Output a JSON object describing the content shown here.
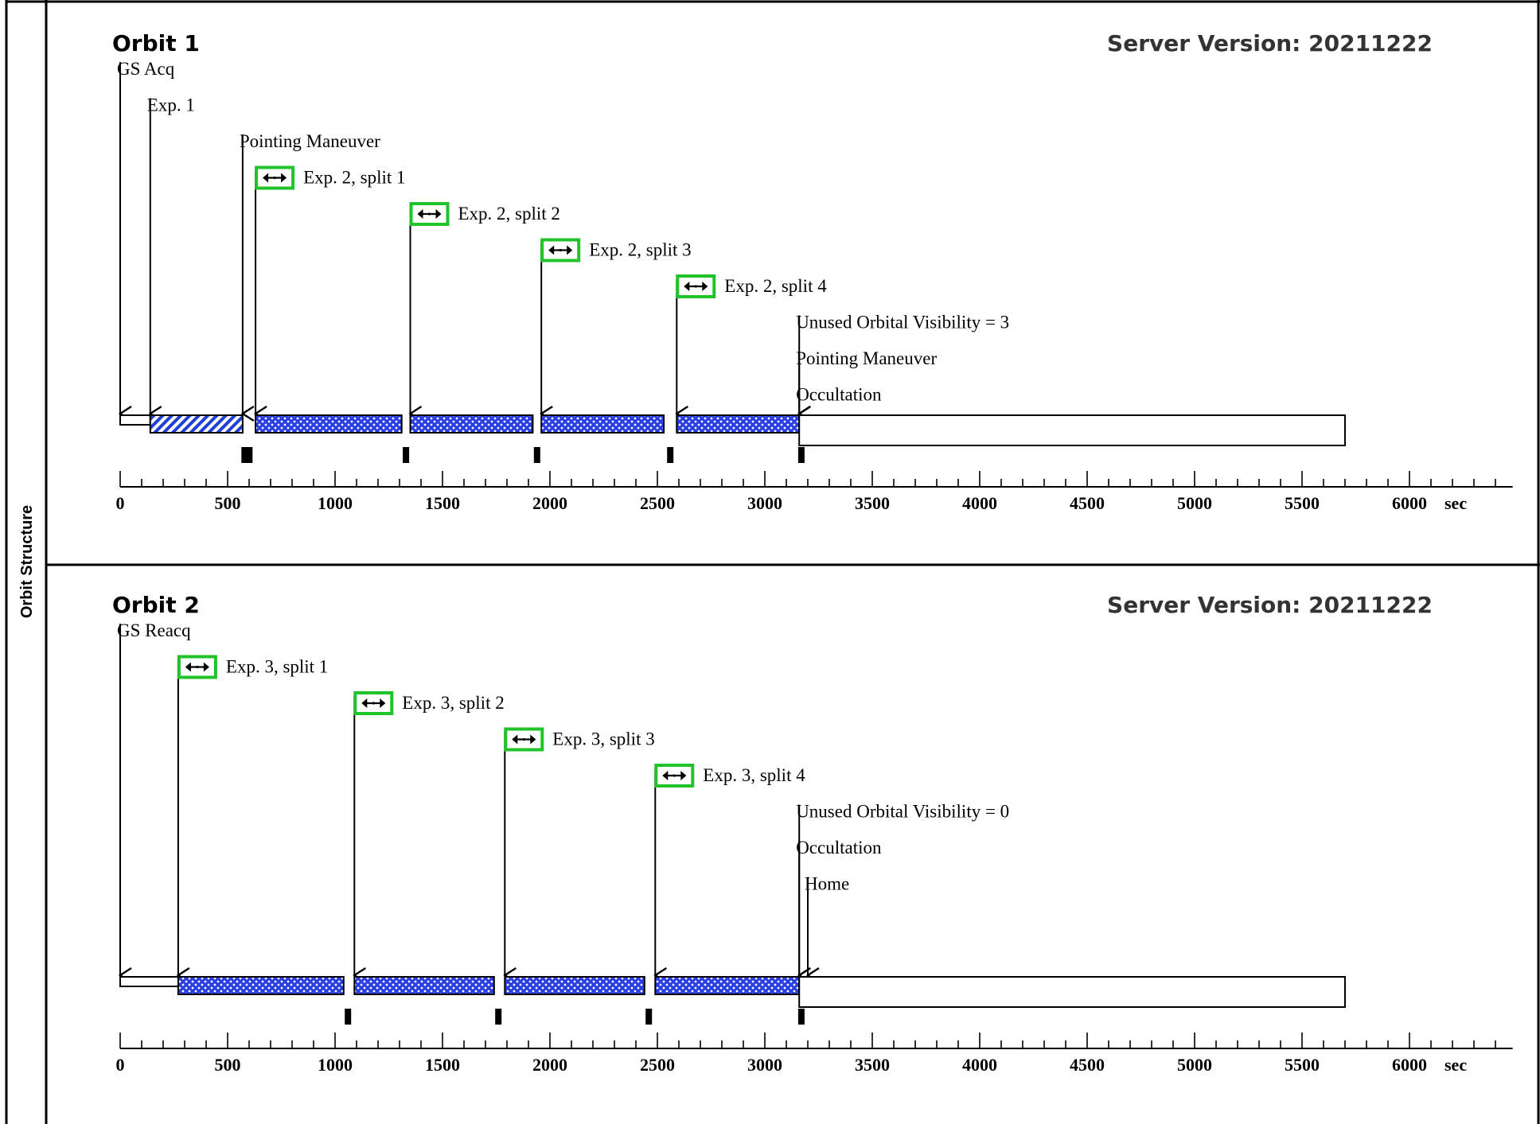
{
  "side_label": "Orbit Structure",
  "orbits": [
    {
      "title": "Orbit 1",
      "server_version": "Server Version: 20211222",
      "axis_unit": "sec",
      "axis_ticks": [
        "0",
        "500",
        "1000",
        "1500",
        "2000",
        "2500",
        "3000",
        "3500",
        "4000",
        "4500",
        "5000",
        "5500",
        "6000"
      ],
      "events": [
        {
          "label": "GS Acq",
          "time": 0,
          "icon": false
        },
        {
          "label": "Exp. 1",
          "time": 140,
          "icon": false
        },
        {
          "label": "Pointing Maneuver",
          "time": 570,
          "icon": false
        },
        {
          "label": "Exp. 2, split 1",
          "time": 630,
          "icon": "double-arrow-icon"
        },
        {
          "label": "Exp. 2, split 2",
          "time": 1350,
          "icon": "double-arrow-icon"
        },
        {
          "label": "Exp. 2, split 3",
          "time": 1960,
          "icon": "double-arrow-icon"
        },
        {
          "label": "Exp. 2, split 4",
          "time": 2590,
          "icon": "double-arrow-icon"
        },
        {
          "label": "Unused Orbital Visibility = 3",
          "time": 3160,
          "icon": false
        },
        {
          "label": "Pointing Maneuver",
          "time": 3160,
          "icon": false
        },
        {
          "label": "Occultation",
          "time": 3160,
          "icon": false
        }
      ],
      "segments": [
        {
          "type": "outline",
          "start": 0,
          "end": 140,
          "half": true
        },
        {
          "type": "hatched",
          "start": 140,
          "end": 570
        },
        {
          "type": "dotted",
          "start": 630,
          "end": 1310
        },
        {
          "type": "dotted",
          "start": 1350,
          "end": 1920
        },
        {
          "type": "dotted",
          "start": 1960,
          "end": 2530
        },
        {
          "type": "dotted",
          "start": 2590,
          "end": 3160
        },
        {
          "type": "outline",
          "start": 3160,
          "end": 5700
        }
      ],
      "markers": [
        {
          "time": 590,
          "wide": true
        },
        {
          "time": 1330
        },
        {
          "time": 1940
        },
        {
          "time": 2560
        },
        {
          "time": 3170
        }
      ]
    },
    {
      "title": "Orbit 2",
      "server_version": "Server Version: 20211222",
      "axis_unit": "sec",
      "axis_ticks": [
        "0",
        "500",
        "1000",
        "1500",
        "2000",
        "2500",
        "3000",
        "3500",
        "4000",
        "4500",
        "5000",
        "5500",
        "6000"
      ],
      "events": [
        {
          "label": "GS Reacq",
          "time": 0,
          "icon": false
        },
        {
          "label": "Exp. 3, split 1",
          "time": 270,
          "icon": "double-arrow-icon"
        },
        {
          "label": "Exp. 3, split 2",
          "time": 1090,
          "icon": "double-arrow-icon"
        },
        {
          "label": "Exp. 3, split 3",
          "time": 1790,
          "icon": "double-arrow-icon"
        },
        {
          "label": "Exp. 3, split 4",
          "time": 2490,
          "icon": "double-arrow-icon"
        },
        {
          "label": "Unused Orbital Visibility = 0",
          "time": 3160,
          "icon": false
        },
        {
          "label": "Occultation",
          "time": 3160,
          "icon": false
        },
        {
          "label": "Home",
          "time": 3200,
          "icon": false
        }
      ],
      "segments": [
        {
          "type": "outline",
          "start": 0,
          "end": 390,
          "half": true
        },
        {
          "type": "dotted",
          "start": 270,
          "end": 1040
        },
        {
          "type": "dotted",
          "start": 1090,
          "end": 1740
        },
        {
          "type": "dotted",
          "start": 1790,
          "end": 2440
        },
        {
          "type": "dotted",
          "start": 2490,
          "end": 3160
        },
        {
          "type": "outline",
          "start": 3200,
          "end": 3480,
          "half": true
        },
        {
          "type": "outline",
          "start": 3160,
          "end": 5700
        }
      ],
      "markers": [
        {
          "time": 1060
        },
        {
          "time": 1760
        },
        {
          "time": 2460
        },
        {
          "time": 3170
        }
      ]
    }
  ],
  "colors": {
    "frame": "#000000",
    "hatch_fill": "#1f3fd8",
    "dot_fill": "#2a3fe0",
    "icon_border": "#22c22a"
  }
}
